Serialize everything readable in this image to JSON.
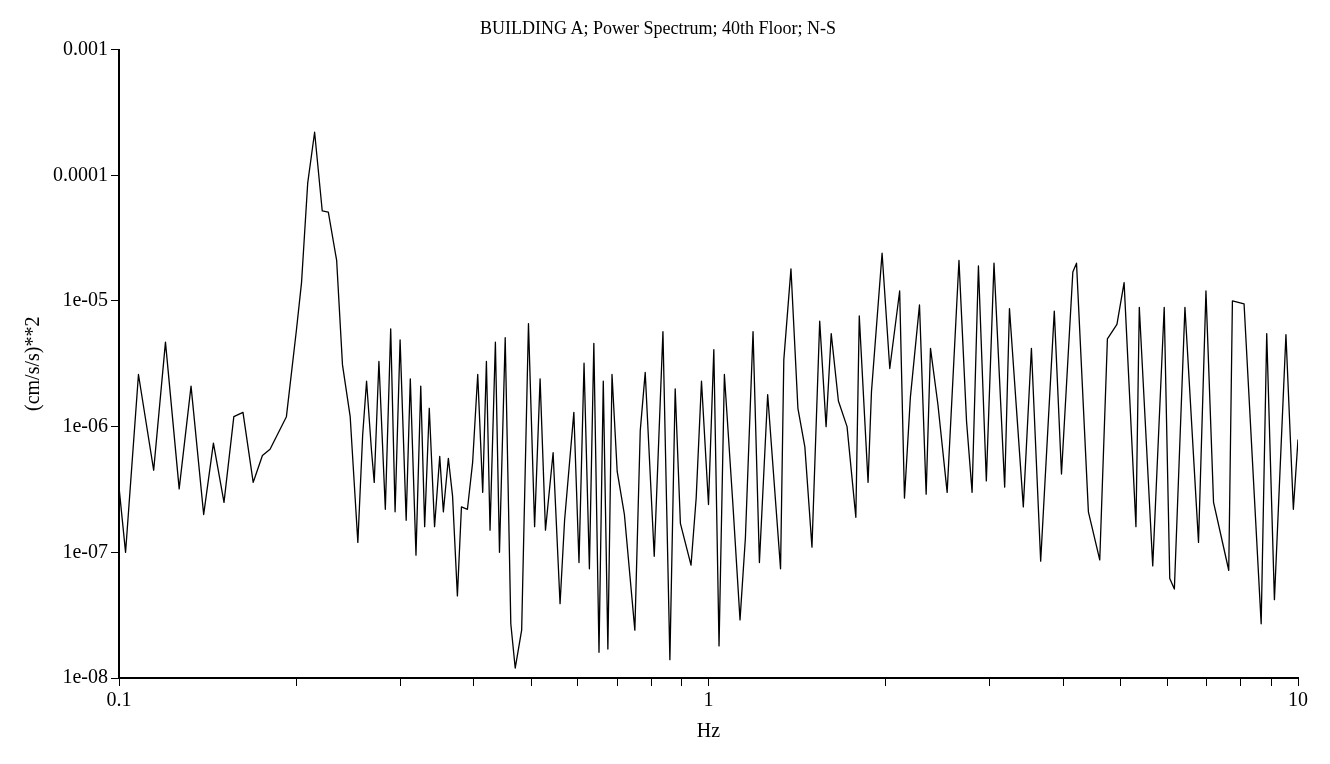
{
  "chart_data": {
    "type": "line",
    "title": "BUILDING A; Power Spectrum; 40th Floor; N-S",
    "xlabel": "Hz",
    "ylabel": "(cm/s/s)**2",
    "log": "xy",
    "grid": false,
    "legend": false,
    "marker": "none",
    "line_style": "solid",
    "xlim": [
      0.1,
      10
    ],
    "ylim": [
      1e-08,
      0.001
    ],
    "xticks": [
      0.1,
      {
        "value": 0.2,
        "label": null
      },
      {
        "value": 0.3,
        "label": null
      },
      {
        "value": 0.4,
        "label": null
      },
      {
        "value": 0.5,
        "label": null
      },
      {
        "value": 0.6,
        "label": null
      },
      {
        "value": 0.7,
        "label": null
      },
      {
        "value": 0.8,
        "label": null
      },
      {
        "value": 0.9,
        "label": null
      },
      1,
      {
        "value": 2,
        "label": null
      },
      {
        "value": 3,
        "label": null
      },
      {
        "value": 4,
        "label": null
      },
      {
        "value": 5,
        "label": null
      },
      {
        "value": 6,
        "label": null
      },
      {
        "value": 7,
        "label": null
      },
      {
        "value": 8,
        "label": null
      },
      {
        "value": 9,
        "label": null
      },
      10
    ],
    "yticks": [
      {
        "value": 1e-08,
        "label": "1e-08"
      },
      {
        "value": 1e-07,
        "label": "1e-07"
      },
      {
        "value": 1e-06,
        "label": "1e-06"
      },
      {
        "value": 1e-05,
        "label": "1e-05"
      },
      0.0001,
      0.001
    ],
    "series": [
      {
        "color": "#000000",
        "x": [
          0.1,
          0.1026,
          0.1079,
          0.1145,
          0.1199,
          0.1265,
          0.1325,
          0.1392,
          0.1446,
          0.1507,
          0.1566,
          0.1623,
          0.1689,
          0.1751,
          0.1804,
          0.1923,
          0.2,
          0.204,
          0.209,
          0.2147,
          0.2212,
          0.2265,
          0.234,
          0.2394,
          0.2467,
          0.2542,
          0.259,
          0.263,
          0.268,
          0.271,
          0.276,
          0.283,
          0.289,
          0.294,
          0.2998,
          0.307,
          0.312,
          0.319,
          0.325,
          0.33,
          0.336,
          0.343,
          0.35,
          0.355,
          0.362,
          0.368,
          0.375,
          0.381,
          0.39,
          0.398,
          0.406,
          0.414,
          0.42,
          0.426,
          0.435,
          0.442,
          0.452,
          0.462,
          0.47,
          0.482,
          0.495,
          0.507,
          0.518,
          0.529,
          0.545,
          0.56,
          0.57,
          0.591,
          0.603,
          0.615,
          0.628,
          0.639,
          0.652,
          0.663,
          0.675,
          0.686,
          0.7,
          0.72,
          0.75,
          0.766,
          0.781,
          0.809,
          0.837,
          0.86,
          0.878,
          0.896,
          0.934,
          0.953,
          0.973,
          1.0,
          1.021,
          1.042,
          1.064,
          1.1,
          1.131,
          1.155,
          1.19,
          1.22,
          1.26,
          1.325,
          1.342,
          1.38,
          1.418,
          1.457,
          1.498,
          1.544,
          1.583,
          1.615,
          1.661,
          1.718,
          1.778,
          1.802,
          1.865,
          1.89,
          1.97,
          2.03,
          2.11,
          2.15,
          2.2,
          2.28,
          2.34,
          2.38,
          2.45,
          2.54,
          2.66,
          2.74,
          2.8,
          2.87,
          2.96,
          3.05,
          3.18,
          3.24,
          3.42,
          3.53,
          3.66,
          3.86,
          3.97,
          4.15,
          4.21,
          4.41,
          4.61,
          4.75,
          4.93,
          5.07,
          5.31,
          5.38,
          5.67,
          5.93,
          6.06,
          6.17,
          6.43,
          6.78,
          6.98,
          7.19,
          7.63,
          7.74,
          8.1,
          8.66,
          8.85,
          9.12,
          9.54,
          9.82,
          10
        ],
        "values": [
          3.3e-07,
          1e-07,
          2.6e-06,
          4.5e-07,
          4.7e-06,
          3.2e-07,
          2.1e-06,
          2e-07,
          7.4e-07,
          2.5e-07,
          1.2e-06,
          1.3e-06,
          3.6e-07,
          5.9e-07,
          6.6e-07,
          1.2e-06,
          5.9e-06,
          1.4e-05,
          8.7e-05,
          0.00022,
          5.2e-05,
          5.1e-05,
          2.1e-05,
          3.1e-06,
          1.2e-06,
          1.2e-07,
          8.5e-07,
          2.3e-06,
          6.6e-07,
          3.6e-07,
          3.3e-06,
          2.2e-07,
          6e-06,
          2.1e-07,
          4.9e-06,
          1.8e-07,
          2.4e-06,
          9.5e-08,
          2.1e-06,
          1.6e-07,
          1.4e-06,
          1.6e-07,
          5.8e-07,
          2.1e-07,
          5.6e-07,
          2.8e-07,
          4.5e-08,
          2.3e-07,
          2.2e-07,
          5.2e-07,
          2.6e-06,
          3e-07,
          3.3e-06,
          1.5e-07,
          4.7e-06,
          1e-07,
          5.1e-06,
          2.7e-08,
          1.2e-08,
          2.4e-08,
          6.6e-06,
          1.6e-07,
          2.4e-06,
          1.5e-07,
          6.2e-07,
          3.9e-08,
          1.8e-07,
          1.3e-06,
          8.3e-08,
          3.2e-06,
          7.4e-08,
          4.6e-06,
          1.6e-08,
          2.3e-06,
          1.7e-08,
          2.6e-06,
          4.4e-07,
          2e-07,
          2.4e-08,
          9.3e-07,
          2.7e-06,
          9.3e-08,
          5.7e-06,
          1.4e-08,
          2e-06,
          1.7e-07,
          7.9e-08,
          2.7e-07,
          2.3e-06,
          2.4e-07,
          4.1e-06,
          1.8e-08,
          2.6e-06,
          2.4e-07,
          2.9e-08,
          1.3e-07,
          5.7e-06,
          8.3e-08,
          1.8e-06,
          7.4e-08,
          3.4e-06,
          1.8e-05,
          1.4e-06,
          6.9e-07,
          1.1e-07,
          6.9e-06,
          1e-06,
          5.5e-06,
          1.6e-06,
          1e-06,
          1.9e-07,
          7.6e-06,
          3.6e-07,
          1.9e-06,
          2.4e-05,
          2.9e-06,
          1.2e-05,
          2.7e-07,
          1.7e-06,
          9.3e-06,
          2.9e-07,
          4.2e-06,
          1.5e-06,
          3e-07,
          2.1e-05,
          1.1e-06,
          3e-07,
          1.9e-05,
          3.7e-07,
          2e-05,
          3.3e-07,
          8.7e-06,
          2.3e-07,
          4.2e-06,
          8.5e-08,
          8.3e-06,
          4.2e-07,
          1.7e-05,
          2e-05,
          2.1e-07,
          8.7e-08,
          5e-06,
          6.5e-06,
          1.4e-05,
          1.6e-07,
          8.9e-06,
          7.8e-08,
          8.9e-06,
          6.2e-08,
          5.1e-08,
          8.9e-06,
          1.2e-07,
          1.2e-05,
          2.5e-07,
          7.2e-08,
          1e-05,
          9.5e-06,
          2.7e-08,
          5.5e-06,
          4.2e-08,
          5.4e-06,
          2.2e-07,
          7.9e-07
        ]
      }
    ]
  }
}
